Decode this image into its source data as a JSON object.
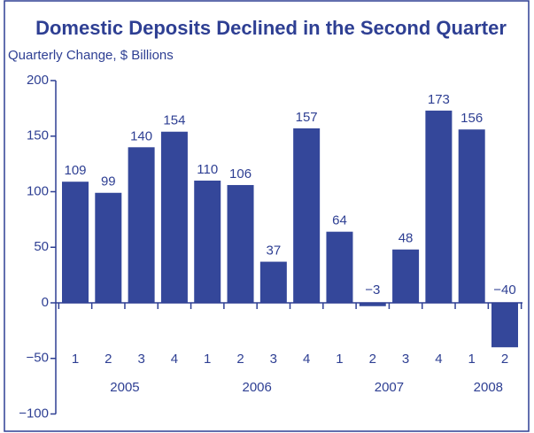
{
  "chart_data": {
    "type": "bar",
    "title": "Domestic Deposits Declined in the Second Quarter",
    "subtitle": "Quarterly Change, $ Billions",
    "categories": [
      "1",
      "2",
      "3",
      "4",
      "1",
      "2",
      "3",
      "4",
      "1",
      "2",
      "3",
      "4",
      "1",
      "2"
    ],
    "years": [
      "2005",
      "2006",
      "2007",
      "2008"
    ],
    "values": [
      109,
      99,
      140,
      154,
      110,
      106,
      37,
      157,
      64,
      -3,
      48,
      173,
      156,
      -40
    ],
    "value_labels": [
      "109",
      "99",
      "140",
      "154",
      "110",
      "106",
      "37",
      "157",
      "64",
      "−3",
      "48",
      "173",
      "156",
      "−40"
    ],
    "color": "#34479a",
    "ylim": [
      -100,
      200
    ],
    "yticks": [
      {
        "value": -100,
        "label": "−100"
      },
      {
        "value": -50,
        "label": "−50"
      },
      0,
      50,
      100,
      150,
      200
    ],
    "grid": false
  }
}
